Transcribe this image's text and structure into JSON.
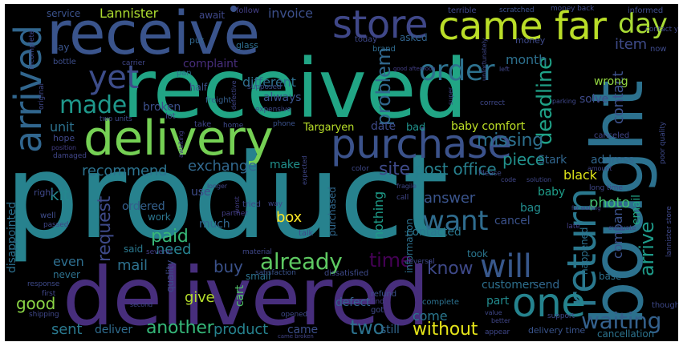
{
  "words": [
    {
      "text": "product",
      "color": "#27828e",
      "rot": 0
    },
    {
      "text": "received",
      "color": "#21a585",
      "rot": 0
    },
    {
      "text": "receive",
      "color": "#3a548c",
      "rot": 0
    },
    {
      "text": "delivered",
      "color": "#472e7c",
      "rot": 0
    },
    {
      "text": "bought",
      "color": "#2c718e",
      "rot": 90
    },
    {
      "text": "delivery",
      "color": "#75d054",
      "rot": 0
    },
    {
      "text": "came far",
      "color": "#bade28",
      "rot": 0
    },
    {
      "text": "purchase",
      "color": "#3b528b",
      "rot": 0
    },
    {
      "text": "store",
      "color": "#3f4788",
      "rot": 0
    },
    {
      "text": "arrived",
      "color": "#31668e",
      "rot": 90
    },
    {
      "text": "return",
      "color": "#2a788e",
      "rot": 90
    },
    {
      "text": "one",
      "color": "#25838e",
      "rot": 0
    },
    {
      "text": "order",
      "color": "#2d718e",
      "rot": 0
    },
    {
      "text": "day",
      "color": "#a8db34",
      "rot": 0
    },
    {
      "text": "yet",
      "color": "#3d4d8a",
      "rot": 0
    },
    {
      "text": "made",
      "color": "#1f988b",
      "rot": 0
    },
    {
      "text": "want",
      "color": "#2f6c8e",
      "rot": 0
    },
    {
      "text": "will",
      "color": "#38588c",
      "rot": 0
    },
    {
      "text": "already",
      "color": "#5ec962",
      "rot": 0
    },
    {
      "text": "waiting",
      "color": "#34618d",
      "rot": 0
    },
    {
      "text": "problem",
      "color": "#31688e",
      "rot": 90
    },
    {
      "text": "deadline",
      "color": "#1fa187",
      "rot": 90
    },
    {
      "text": "arrive",
      "color": "#1e9b8a",
      "rot": 90
    },
    {
      "text": "time",
      "color": "#440154",
      "rot": 0
    },
    {
      "text": "request",
      "color": "#3e4a89",
      "rot": 90
    },
    {
      "text": "know",
      "color": "#3e4989",
      "rot": 0
    },
    {
      "text": "another",
      "color": "#35b779",
      "rot": 0
    },
    {
      "text": "without",
      "color": "#e5e419",
      "rot": 0
    },
    {
      "text": "two",
      "color": "#2c728e",
      "rot": 0
    },
    {
      "text": "good",
      "color": "#8bd646",
      "rot": 0
    },
    {
      "text": "sent",
      "color": "#2a788e",
      "rot": 0
    },
    {
      "text": "deliver",
      "color": "#2f6b8e",
      "rot": 0
    },
    {
      "text": "product",
      "color": "#26828e",
      "rot": 0
    },
    {
      "text": "came",
      "color": "#3c4f8a",
      "rot": 0
    },
    {
      "text": "still",
      "color": "#31678e",
      "rot": 0
    },
    {
      "text": "come",
      "color": "#2a778e",
      "rot": 0
    },
    {
      "text": "exchange",
      "color": "#31688e",
      "rot": 0
    },
    {
      "text": "site",
      "color": "#3e4a89",
      "rot": 0
    },
    {
      "text": "post office",
      "color": "#27808e",
      "rot": 0
    },
    {
      "text": "missing",
      "color": "#2d708e",
      "rot": 0
    },
    {
      "text": "recommend",
      "color": "#2c728e",
      "rot": 0
    },
    {
      "text": "piece",
      "color": "#21918c",
      "rot": 0
    },
    {
      "text": "paid",
      "color": "#37b878",
      "rot": 0
    },
    {
      "text": "need",
      "color": "#26818e",
      "rot": 0
    },
    {
      "text": "mail",
      "color": "#2d718e",
      "rot": 0
    },
    {
      "text": "buy",
      "color": "#3b528b",
      "rot": 0
    },
    {
      "text": "give",
      "color": "#b5de2b",
      "rot": 0
    },
    {
      "text": "box",
      "color": "#fde725",
      "rot": 0
    },
    {
      "text": "even",
      "color": "#2e6e8e",
      "rot": 0
    },
    {
      "text": "kit",
      "color": "#24878e",
      "rot": 0
    },
    {
      "text": "unit",
      "color": "#2c718e",
      "rot": 0
    },
    {
      "text": "Lannister",
      "color": "#addc30",
      "rot": 0
    },
    {
      "text": "invoice",
      "color": "#3c4f8a",
      "rot": 0
    },
    {
      "text": "service",
      "color": "#3b528b",
      "rot": 0
    },
    {
      "text": "await",
      "color": "#3f4889",
      "rot": 0
    },
    {
      "text": "item",
      "color": "#3e4a89",
      "rot": 0
    },
    {
      "text": "month",
      "color": "#2d708e",
      "rot": 0
    },
    {
      "text": "contact",
      "color": "#3c508b",
      "rot": 90
    },
    {
      "text": "company",
      "color": "#3b528b",
      "rot": 90
    },
    {
      "text": "email",
      "color": "#21a685",
      "rot": 90
    },
    {
      "text": "photo",
      "color": "#42be71",
      "rot": 0
    },
    {
      "text": "answer",
      "color": "#3a548c",
      "rot": 0
    },
    {
      "text": "address",
      "color": "#31678e",
      "rot": 0
    },
    {
      "text": "black",
      "color": "#dde318",
      "rot": 0
    },
    {
      "text": "Stark",
      "color": "#31668e",
      "rot": 0
    },
    {
      "text": "Targaryen",
      "color": "#b8de29",
      "rot": 0
    },
    {
      "text": "date",
      "color": "#3e4a89",
      "rot": 0
    },
    {
      "text": "bad",
      "color": "#20928c",
      "rot": 0
    },
    {
      "text": "baby comfort",
      "color": "#bddf26",
      "rot": 0
    },
    {
      "text": "different",
      "color": "#2e6f8e",
      "rot": 0
    },
    {
      "text": "complaint",
      "color": "#472d7b",
      "rot": 0
    },
    {
      "text": "always",
      "color": "#3a538b",
      "rot": 0
    },
    {
      "text": "broken",
      "color": "#3c4f8a",
      "rot": 0
    },
    {
      "text": "solve",
      "color": "#3e4a89",
      "rot": 0
    },
    {
      "text": "wrong",
      "color": "#93d741",
      "rot": 0
    },
    {
      "text": "nothing",
      "color": "#1e9c89",
      "rot": 90
    },
    {
      "text": "contacted",
      "color": "#2a778e",
      "rot": 0
    },
    {
      "text": "information",
      "color": "#2d718e",
      "rot": 90
    },
    {
      "text": "customer",
      "color": "#2d708e",
      "rot": 0
    },
    {
      "text": "send",
      "color": "#31678e",
      "rot": 0
    },
    {
      "text": "part",
      "color": "#228b8d",
      "rot": 0
    },
    {
      "text": "delivery time",
      "color": "#3a548c",
      "rot": 0
    },
    {
      "text": "cancellation",
      "color": "#2c738e",
      "rot": 0
    },
    {
      "text": "disappointed",
      "color": "#2d708e",
      "rot": 90
    },
    {
      "text": "make",
      "color": "#21918c",
      "rot": 0
    },
    {
      "text": "ordered",
      "color": "#34608d",
      "rot": 0
    },
    {
      "text": "work",
      "color": "#2b758e",
      "rot": 0
    },
    {
      "text": "use",
      "color": "#3e4c8a",
      "rot": 0
    },
    {
      "text": "much",
      "color": "#31668e",
      "rot": 0
    },
    {
      "text": "cancel",
      "color": "#3b528b",
      "rot": 0
    },
    {
      "text": "bag",
      "color": "#228c8d",
      "rot": 0
    },
    {
      "text": "baby",
      "color": "#1e9d89",
      "rot": 0
    },
    {
      "text": "canceled",
      "color": "#404688",
      "rot": 0
    },
    {
      "text": "right",
      "color": "#3f4889",
      "rot": 0
    },
    {
      "text": "small",
      "color": "#2c728e",
      "rot": 0
    },
    {
      "text": "cart",
      "color": "#52c569",
      "rot": 90
    },
    {
      "text": "defect",
      "color": "#33638d",
      "rot": 0
    },
    {
      "text": "never",
      "color": "#2d718e",
      "rot": 0
    },
    {
      "text": "said",
      "color": "#2a788e",
      "rot": 0
    },
    {
      "text": "quality",
      "color": "#3e4a89",
      "rot": 90
    },
    {
      "text": "happened",
      "color": "#2c728e",
      "rot": 90
    },
    {
      "text": "purchased",
      "color": "#31688e",
      "rot": 90
    },
    {
      "text": "took",
      "color": "#2a768e",
      "rot": 0
    },
    {
      "text": "refund",
      "color": "#3b528b",
      "rot": 0
    },
    {
      "text": "complete",
      "color": "#2c718e",
      "rot": 0
    },
    {
      "text": "base",
      "color": "#2d718e",
      "rot": 0
    },
    {
      "text": "dissatisfied",
      "color": "#3e4a89",
      "rot": 0
    },
    {
      "text": "satisfaction",
      "color": "#3a538b",
      "rot": 0
    },
    {
      "text": "asked",
      "color": "#32648e",
      "rot": 0
    },
    {
      "text": "money",
      "color": "#3e4a89",
      "rot": 0
    },
    {
      "text": "put",
      "color": "#31678e",
      "rot": 0
    },
    {
      "text": "glass",
      "color": "#2e6e8e",
      "rot": 0
    },
    {
      "text": "terrible",
      "color": "#3f4788",
      "rot": 0
    },
    {
      "text": "informed",
      "color": "#3e4c8a",
      "rot": 0
    },
    {
      "text": "scratched",
      "color": "#3b518b",
      "rot": 0
    },
    {
      "text": "follow",
      "color": "#433e85",
      "rot": 0
    },
    {
      "text": "say",
      "color": "#3a548c",
      "rot": 0
    },
    {
      "text": "bottle",
      "color": "#3d4e8a",
      "rot": 0
    },
    {
      "text": "carrier",
      "color": "#404688",
      "rot": 0
    },
    {
      "text": "pan",
      "color": "#2e6f8e",
      "rot": 0
    },
    {
      "text": "half",
      "color": "#3b528b",
      "rot": 0
    },
    {
      "text": "today",
      "color": "#3f4889",
      "rot": 0
    },
    {
      "text": "brand",
      "color": "#2f6b8e",
      "rot": 0
    },
    {
      "text": "freight",
      "color": "#355f8d",
      "rot": 0
    },
    {
      "text": "two units",
      "color": "#3e4a89",
      "rot": 0
    },
    {
      "text": "supposed",
      "color": "#3c4f8a",
      "rot": 0
    },
    {
      "text": "expensive",
      "color": "#3e4989",
      "rot": 0
    },
    {
      "text": "lot",
      "color": "#414487",
      "rot": 0
    },
    {
      "text": "take",
      "color": "#404688",
      "rot": 0
    },
    {
      "text": "home",
      "color": "#3e4989",
      "rot": 0
    },
    {
      "text": "phone",
      "color": "#3b528b",
      "rot": 0
    },
    {
      "text": "hope",
      "color": "#3f4788",
      "rot": 0
    },
    {
      "text": "position",
      "color": "#433e85",
      "rot": 0
    },
    {
      "text": "damaged",
      "color": "#404688",
      "rot": 0
    },
    {
      "text": "Please",
      "color": "#3e4a89",
      "rot": 0
    },
    {
      "text": "color",
      "color": "#3f4889",
      "rot": 0
    },
    {
      "text": "tried",
      "color": "#3e4989",
      "rot": 0
    },
    {
      "text": "way",
      "color": "#3f4788",
      "rot": 0
    },
    {
      "text": "partner",
      "color": "#433e85",
      "rot": 0
    },
    {
      "text": "well",
      "color": "#3e4c8a",
      "rot": 0
    },
    {
      "text": "passed",
      "color": "#404688",
      "rot": 0
    },
    {
      "text": "talk",
      "color": "#3e4989",
      "rot": 0
    },
    {
      "text": "several",
      "color": "#433e85",
      "rot": 0
    },
    {
      "text": "material",
      "color": "#3f4788",
      "rot": 0
    },
    {
      "text": "response",
      "color": "#3e4a89",
      "rot": 0
    },
    {
      "text": "first",
      "color": "#404688",
      "rot": 0
    },
    {
      "text": "shipping",
      "color": "#3f4788",
      "rot": 0
    },
    {
      "text": "second",
      "color": "#404688",
      "rot": 0
    },
    {
      "text": "opened",
      "color": "#3e4989",
      "rot": 0
    },
    {
      "text": "got",
      "color": "#3e4a89",
      "rot": 0
    },
    {
      "text": "find",
      "color": "#433e85",
      "rot": 0
    },
    {
      "text": "reversal",
      "color": "#3f4889",
      "rot": 0
    },
    {
      "text": "call",
      "color": "#404688",
      "rot": 0
    },
    {
      "text": "late",
      "color": "#433e85",
      "rot": 0
    },
    {
      "text": "support",
      "color": "#3e4a89",
      "rot": 0
    },
    {
      "text": "appear",
      "color": "#3f4788",
      "rot": 0
    },
    {
      "text": "came broken",
      "color": "#414487",
      "rot": 0
    },
    {
      "text": "thought",
      "color": "#3e4989",
      "rot": 0
    },
    {
      "text": "long time",
      "color": "#3f4788",
      "rot": 0
    },
    {
      "text": "now",
      "color": "#3e4a89",
      "rot": 0
    },
    {
      "text": "contact ye",
      "color": "#3f4889",
      "rot": 0
    },
    {
      "text": "money back",
      "color": "#3e4a89",
      "rot": 0
    },
    {
      "text": "good afternoon",
      "color": "#433e85",
      "rot": 0
    },
    {
      "text": "left",
      "color": "#404688",
      "rot": 0
    },
    {
      "text": "correct",
      "color": "#3f4889",
      "rot": 0
    },
    {
      "text": "parking",
      "color": "#3f4788",
      "rot": 0
    },
    {
      "text": "code",
      "color": "#404688",
      "rot": 0
    },
    {
      "text": "solution",
      "color": "#3f4788",
      "rot": 0
    },
    {
      "text": "amount",
      "color": "#404688",
      "rot": 0
    },
    {
      "text": "expected",
      "color": "#3f4788",
      "rot": 90
    },
    {
      "text": "incomplete",
      "color": "#404688",
      "rot": 90
    },
    {
      "text": "original",
      "color": "#3f4788",
      "rot": 90
    },
    {
      "text": "awaiting",
      "color": "#433e85",
      "rot": 90
    },
    {
      "text": "lannister store",
      "color": "#3f4889",
      "rot": 90
    },
    {
      "text": "poor quality",
      "color": "#3e4a89",
      "rot": 90
    },
    {
      "text": "fragile",
      "color": "#3f4788",
      "rot": 0
    },
    {
      "text": "evaluate",
      "color": "#404688",
      "rot": 0
    },
    {
      "text": "far waiting",
      "color": "#433e85",
      "rot": 0
    },
    {
      "text": "unfortunately",
      "color": "#3f4788",
      "rot": 90
    },
    {
      "text": "super",
      "color": "#404688",
      "rot": 90
    },
    {
      "text": "defective",
      "color": "#404688",
      "rot": 90
    },
    {
      "text": "worst",
      "color": "#433e85",
      "rot": 90
    },
    {
      "text": "value",
      "color": "#3f4788",
      "rot": 0
    },
    {
      "text": "better",
      "color": "#404688",
      "rot": 0
    },
    {
      "text": "longer",
      "color": "#404688",
      "rot": 0
    }
  ]
}
